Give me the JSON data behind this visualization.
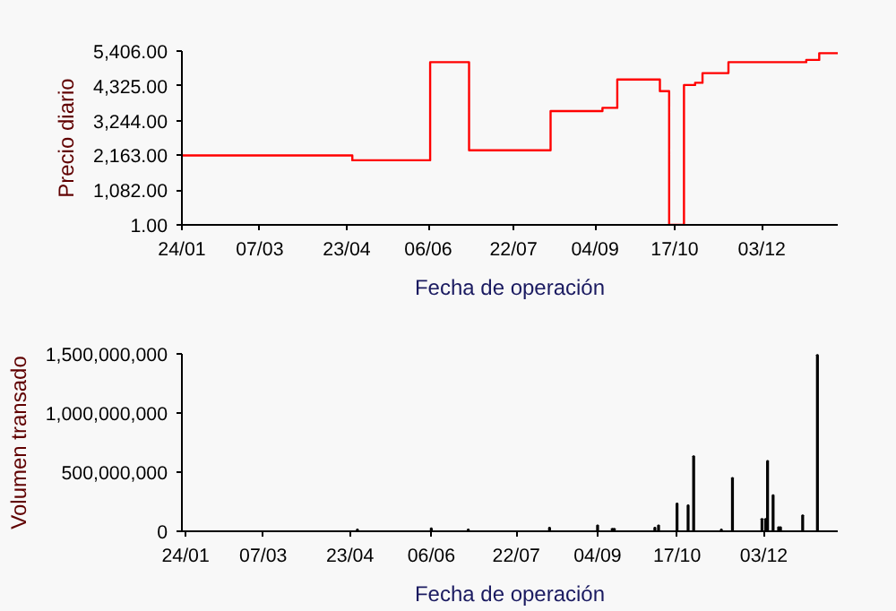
{
  "chart_data": [
    {
      "type": "step",
      "xlabel": "Fecha de operación",
      "ylabel": "Precio diario",
      "x": [
        "2010-01-24",
        "2010-04-26",
        "2010-06-07",
        "2010-06-28",
        "2010-08-11",
        "2010-09-08",
        "2010-09-16",
        "2010-10-09",
        "2010-10-14",
        "2010-10-22",
        "2010-10-28",
        "2010-11-01",
        "2010-11-15",
        "2010-12-27",
        "2011-01-03",
        "2011-01-13"
      ],
      "series": [
        {
          "color": "#ff0000",
          "values": [
            2160,
            2010,
            5060,
            2320,
            3540,
            3640,
            4520,
            4160,
            1,
            4350,
            4420,
            4720,
            5060,
            5130,
            5340,
            5340
          ]
        }
      ],
      "xlim": [
        "2010-01-24",
        "2011-01-13"
      ],
      "xticks": [
        {
          "value": "2010-01-24",
          "label": "24/01"
        },
        {
          "value": "2010-03-07",
          "label": "07/03"
        },
        {
          "value": "2010-04-23",
          "label": "23/04"
        },
        {
          "value": "2010-06-06",
          "label": "06/06"
        },
        {
          "value": "2010-07-22",
          "label": "22/07"
        },
        {
          "value": "2010-09-04",
          "label": "04/09"
        },
        {
          "value": "2010-10-17",
          "label": "17/10"
        },
        {
          "value": "2010-12-03",
          "label": "03/12"
        }
      ],
      "ylim": [
        1,
        5406
      ],
      "yticks": [
        {
          "value": 1,
          "label": "1.00"
        },
        {
          "value": 1082,
          "label": "1,082.00"
        },
        {
          "value": 2163,
          "label": "2,163.00"
        },
        {
          "value": 3244,
          "label": "3,244.00"
        },
        {
          "value": 4325,
          "label": "4,325.00"
        },
        {
          "value": 5406,
          "label": "5,406.00"
        }
      ],
      "grid": false
    },
    {
      "type": "bar",
      "xlabel": "Fecha de operación",
      "ylabel": "Volumen transado",
      "x": [
        "2010-04-27",
        "2010-06-06",
        "2010-06-26",
        "2010-08-09",
        "2010-09-04",
        "2010-09-12",
        "2010-09-13",
        "2010-10-05",
        "2010-10-07",
        "2010-10-17",
        "2010-10-23",
        "2010-10-26",
        "2010-11-10",
        "2010-11-16",
        "2010-12-02",
        "2010-12-04",
        "2010-12-05",
        "2010-12-08",
        "2010-12-11",
        "2010-12-12",
        "2010-12-24",
        "2011-01-01"
      ],
      "series": [
        {
          "color": "#000000",
          "values": [
            15000000,
            25000000,
            15000000,
            30000000,
            50000000,
            20000000,
            20000000,
            30000000,
            50000000,
            235000000,
            220000000,
            635000000,
            15000000,
            450000000,
            105000000,
            105000000,
            595000000,
            305000000,
            35000000,
            35000000,
            135000000,
            1490000000
          ]
        }
      ],
      "xlim": [
        "2010-01-22",
        "2011-01-12"
      ],
      "xticks": [
        {
          "value": "2010-01-24",
          "label": "24/01"
        },
        {
          "value": "2010-03-07",
          "label": "07/03"
        },
        {
          "value": "2010-04-23",
          "label": "23/04"
        },
        {
          "value": "2010-06-06",
          "label": "06/06"
        },
        {
          "value": "2010-07-22",
          "label": "22/07"
        },
        {
          "value": "2010-09-04",
          "label": "04/09"
        },
        {
          "value": "2010-10-17",
          "label": "17/10"
        },
        {
          "value": "2010-12-03",
          "label": "03/12"
        }
      ],
      "ylim": [
        0,
        1500000000
      ],
      "yticks": [
        0,
        {
          "value": 500000000,
          "label": "500,000,000"
        },
        {
          "value": 1000000000,
          "label": "1,000,000,000"
        },
        {
          "value": 1500000000,
          "label": "1,500,000,000"
        }
      ],
      "grid": false
    }
  ]
}
